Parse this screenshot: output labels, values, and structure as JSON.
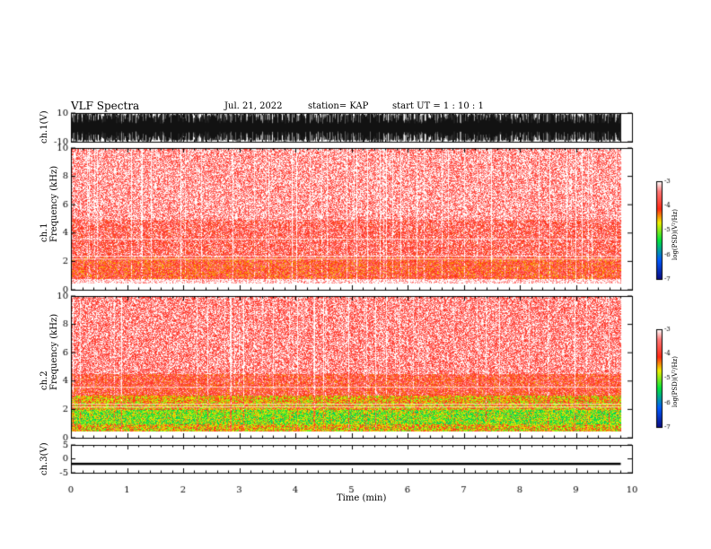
{
  "header": {
    "title": "VLF Spectra",
    "date": "Jul. 21, 2022",
    "station": "station= KAP",
    "start": "start  UT =  1 : 10 : 1"
  },
  "chart_data": [
    {
      "type": "line",
      "name": "ch1-waveform",
      "ylabel": "ch.1(V)",
      "yticks": [
        "10",
        "-10"
      ],
      "ylim": [
        -10,
        10
      ],
      "xlim": [
        0,
        10
      ],
      "note_values": "dense black waveform saturating between -10 and 10 V over 0-9.8 min"
    },
    {
      "type": "heatmap",
      "name": "ch1-spectrogram",
      "ylabel": "ch.1\nFrequency (kHz)",
      "yticks": [
        "0",
        "2",
        "4",
        "6",
        "8",
        "10"
      ],
      "ylim": [
        0,
        10
      ],
      "xlim": [
        0,
        10
      ],
      "data_extent_x": [
        0,
        9.8
      ],
      "colorbar": {
        "label": "log(PSD)(V²/Hz)",
        "ticks": [
          "-3",
          "-4",
          "-5",
          "-6",
          "-7"
        ],
        "range": [
          -7,
          -3
        ]
      },
      "bands": [
        {
          "f_low": 0.8,
          "f_high": 2.3,
          "level": -3.9
        },
        {
          "f_low": 2.3,
          "f_high": 5.0,
          "level": -3.6
        },
        {
          "f_low": 5.0,
          "f_high": 10.0,
          "level": -3.3
        }
      ]
    },
    {
      "type": "heatmap",
      "name": "ch2-spectrogram",
      "ylabel": "ch.2\nFrequency (kHz)",
      "yticks": [
        "0",
        "2",
        "4",
        "6",
        "8",
        "10"
      ],
      "ylim": [
        0,
        10
      ],
      "xlim": [
        0,
        10
      ],
      "data_extent_x": [
        0,
        9.8
      ],
      "colorbar": {
        "label": "log(PSD)(V²/Hz)",
        "ticks": [
          "-3",
          "-4",
          "-5",
          "-6",
          "-7"
        ],
        "range": [
          -7,
          -3
        ]
      },
      "bands": [
        {
          "f_low": 0.5,
          "f_high": 1.0,
          "level": -4.6
        },
        {
          "f_low": 1.0,
          "f_high": 2.0,
          "level": -5.0
        },
        {
          "f_low": 2.0,
          "f_high": 3.0,
          "level": -4.5
        },
        {
          "f_low": 3.0,
          "f_high": 4.5,
          "level": -3.8
        },
        {
          "f_low": 4.5,
          "f_high": 10.0,
          "level": -3.4
        }
      ]
    },
    {
      "type": "line",
      "name": "ch3-waveform",
      "ylabel": "ch.3(V)",
      "yticks": [
        "5",
        "0",
        "-5"
      ],
      "ylim": [
        -5,
        5
      ],
      "xlim": [
        0,
        10
      ],
      "values_band": [
        -2.2,
        -1.4
      ]
    }
  ],
  "xaxis": {
    "label": "Time (min)",
    "ticks": [
      "0",
      "1",
      "2",
      "3",
      "4",
      "5",
      "6",
      "7",
      "8",
      "9",
      "10"
    ]
  }
}
